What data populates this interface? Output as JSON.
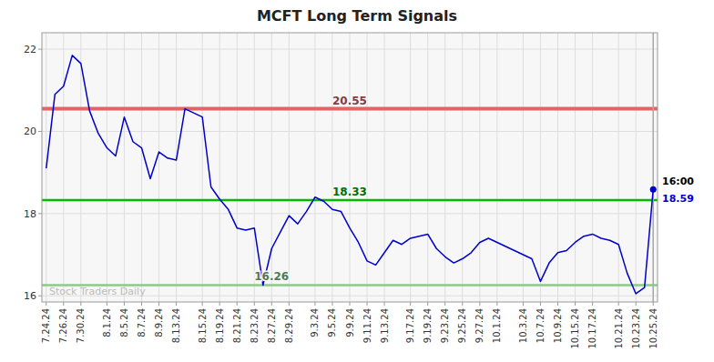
{
  "chart_data": {
    "type": "line",
    "title": "MCFT Long Term Signals",
    "categories": [
      "7.24.24",
      null,
      "7.26.24",
      null,
      "7.30.24",
      null,
      null,
      "8.1.24",
      null,
      "8.5.24",
      null,
      "8.7.24",
      null,
      "8.9.24",
      null,
      "8.13.24",
      null,
      null,
      "8.15.24",
      null,
      "8.19.24",
      null,
      "8.21.24",
      null,
      "8.23.24",
      null,
      "8.27.24",
      null,
      "8.29.24",
      null,
      null,
      "9.3.24",
      null,
      "9.5.24",
      null,
      "9.9.24",
      null,
      "9.11.24",
      null,
      "9.13.24",
      null,
      null,
      "9.17.24",
      null,
      "9.19.24",
      null,
      "9.23.24",
      null,
      "9.25.24",
      null,
      "9.27.24",
      null,
      "10.1.24",
      null,
      null,
      "10.3.24",
      null,
      "10.7.24",
      null,
      "10.9.24",
      null,
      "10.15.24",
      null,
      "10.17.24",
      null,
      null,
      "10.21.24",
      null,
      "10.23.24",
      null,
      "10.25.24"
    ],
    "series": [
      {
        "color": "#0000cc",
        "values": [
          19.1,
          20.9,
          21.1,
          21.85,
          21.65,
          20.5,
          19.95,
          19.6,
          19.4,
          20.35,
          19.75,
          19.6,
          18.85,
          19.5,
          19.35,
          19.3,
          20.55,
          20.45,
          20.35,
          18.65,
          18.35,
          18.1,
          17.65,
          17.6,
          17.65,
          16.26,
          17.15,
          17.55,
          17.95,
          17.75,
          18.05,
          18.4,
          18.3,
          18.1,
          18.05,
          17.65,
          17.3,
          16.85,
          16.75,
          17.05,
          17.35,
          17.25,
          17.4,
          17.45,
          17.5,
          17.15,
          16.95,
          16.8,
          16.9,
          17.05,
          17.3,
          17.4,
          17.3,
          17.2,
          17.1,
          17.0,
          16.9,
          16.35,
          16.8,
          17.05,
          17.1,
          17.3,
          17.45,
          17.5,
          17.4,
          17.35,
          17.25,
          16.55,
          16.05,
          16.2,
          18.59
        ]
      }
    ],
    "ylim": [
      15.85,
      22.4
    ],
    "yticks": [
      16,
      18,
      20,
      22
    ],
    "grid": true,
    "reference_lines": [
      {
        "value": 20.55,
        "label": "20.55",
        "color": "#e06666"
      },
      {
        "value": 18.33,
        "label": "18.33",
        "color": "#00bb00"
      },
      {
        "value": 16.26,
        "label": "16.26",
        "color": "#88cc88"
      }
    ],
    "last_point": {
      "value": 18.59,
      "value_label": "18.59",
      "time_label": "16:00"
    },
    "watermark": "Stock Traders Daily"
  }
}
